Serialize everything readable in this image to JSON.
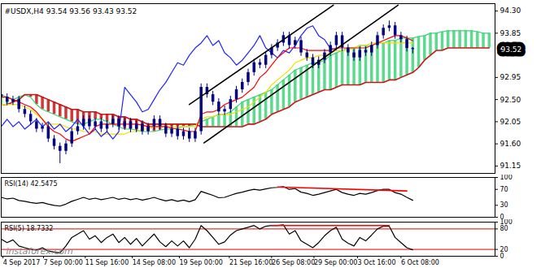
{
  "chart_data": {
    "type": "candlestick",
    "title": "#USDX,H4 93.54 93.56 93.43 93.52",
    "watermark": "instaforex.com",
    "xlim": [
      0,
      84
    ],
    "xticks": [
      {
        "value": 0.3,
        "label": "4 Sep 2017"
      },
      {
        "value": 7.2,
        "label": "7 Sep 00:00"
      },
      {
        "value": 14.3,
        "label": "11 Sep 16:00"
      },
      {
        "value": 22.3,
        "label": "14 Sep 08:00"
      },
      {
        "value": 30.3,
        "label": "19 Sep 00:00"
      },
      {
        "value": 38.8,
        "label": "21 Sep 16:00"
      },
      {
        "value": 46,
        "label": "26 Sep 08:00"
      },
      {
        "value": 53.2,
        "label": "29 Sep 00:00"
      },
      {
        "value": 60.6,
        "label": "3 Oct 16:00"
      },
      {
        "value": 68,
        "label": "6 Oct 08:00"
      }
    ],
    "ylim": [
      91.0,
      94.45
    ],
    "yticks": [
      {
        "value": 94.3,
        "label": "94.30"
      },
      93.85,
      92.95,
      {
        "value": 92.5,
        "label": "92.50"
      },
      92.05,
      {
        "value": 91.6,
        "label": "91.60"
      },
      91.15
    ],
    "current_price": {
      "value": 93.52,
      "label": "93.52"
    },
    "candles": {
      "color": "#000080",
      "open": [
        92.6,
        92.55,
        92.45,
        92.5,
        92.3,
        92.2,
        92.05,
        91.9,
        91.95,
        91.7,
        91.55,
        91.45,
        91.6,
        91.85,
        91.95,
        92.1,
        91.95,
        92.05,
        91.9,
        92.0,
        92.1,
        91.95,
        92.05,
        91.9,
        92.0,
        91.85,
        91.95,
        92.1,
        91.95,
        91.8,
        91.9,
        91.75,
        91.85,
        91.7,
        91.85,
        92.75,
        92.6,
        92.45,
        92.25,
        92.3,
        92.5,
        92.7,
        92.85,
        93.05,
        93.25,
        93.2,
        93.4,
        93.55,
        93.65,
        93.8,
        93.6,
        93.7,
        93.45,
        93.35,
        93.2,
        93.3,
        93.45,
        93.6,
        93.8,
        93.55,
        93.45,
        93.35,
        93.5,
        93.45,
        93.6,
        93.8,
        93.95,
        94.0,
        93.8,
        93.72,
        93.54
      ],
      "high": [
        92.67,
        92.62,
        92.57,
        92.57,
        92.37,
        92.27,
        92.12,
        92.02,
        92.02,
        91.77,
        91.62,
        91.67,
        91.92,
        92.02,
        92.17,
        92.17,
        92.12,
        92.12,
        92.07,
        92.17,
        92.17,
        92.12,
        92.12,
        92.07,
        92.07,
        92.02,
        92.17,
        92.17,
        92.02,
        91.97,
        91.97,
        91.92,
        91.92,
        91.92,
        92.82,
        92.82,
        92.67,
        92.52,
        92.37,
        92.57,
        92.77,
        92.92,
        93.12,
        93.32,
        93.32,
        93.47,
        93.62,
        93.72,
        93.87,
        93.87,
        93.77,
        93.77,
        93.52,
        93.42,
        93.37,
        93.52,
        93.67,
        93.87,
        93.87,
        93.62,
        93.52,
        93.57,
        93.57,
        93.67,
        93.87,
        94.02,
        94.1,
        94.07,
        93.87,
        93.79,
        93.56
      ],
      "low": [
        92.48,
        92.38,
        92.38,
        92.23,
        92.13,
        91.98,
        91.83,
        91.83,
        91.63,
        91.48,
        91.2,
        91.38,
        91.53,
        91.78,
        91.88,
        91.88,
        91.88,
        91.83,
        91.83,
        91.93,
        91.88,
        91.88,
        91.83,
        91.83,
        91.78,
        91.78,
        91.88,
        91.88,
        91.73,
        91.73,
        91.68,
        91.68,
        91.63,
        91.63,
        91.78,
        92.53,
        92.38,
        92.18,
        92.18,
        92.23,
        92.43,
        92.63,
        92.78,
        92.98,
        93.13,
        93.13,
        93.33,
        93.48,
        93.58,
        93.53,
        93.53,
        93.38,
        93.28,
        93.13,
        93.13,
        93.23,
        93.38,
        93.53,
        93.48,
        93.38,
        93.28,
        93.28,
        93.38,
        93.38,
        93.53,
        93.73,
        93.88,
        93.73,
        93.65,
        93.47,
        93.43
      ],
      "close": [
        92.55,
        92.45,
        92.5,
        92.3,
        92.2,
        92.05,
        91.9,
        91.95,
        91.7,
        91.55,
        91.45,
        91.6,
        91.85,
        91.95,
        92.1,
        91.95,
        92.05,
        91.9,
        92.0,
        92.1,
        91.95,
        92.05,
        91.9,
        92.0,
        91.85,
        91.95,
        92.1,
        91.95,
        91.8,
        91.9,
        91.75,
        91.85,
        91.7,
        91.85,
        92.75,
        92.6,
        92.45,
        92.25,
        92.3,
        92.5,
        92.7,
        92.85,
        93.05,
        93.25,
        93.2,
        93.4,
        93.55,
        93.65,
        93.8,
        93.6,
        93.7,
        93.45,
        93.35,
        93.2,
        93.3,
        93.45,
        93.6,
        93.8,
        93.55,
        93.45,
        93.35,
        93.5,
        93.45,
        93.6,
        93.8,
        93.95,
        94.0,
        93.8,
        93.72,
        93.54,
        93.52
      ]
    },
    "cloud": {
      "colors": [
        "#3fd47a",
        "#c81414"
      ],
      "span_a": [
        92.6,
        92.55,
        92.5,
        92.55,
        92.6,
        92.55,
        92.4,
        92.3,
        92.25,
        92.2,
        92.15,
        92.1,
        92.05,
        92.0,
        92.0,
        92.05,
        92.1,
        92.1,
        92.05,
        92.0,
        91.95,
        91.9,
        91.9,
        91.88,
        91.85,
        91.85,
        91.85,
        91.88,
        91.9,
        91.9,
        91.92,
        91.95,
        91.95,
        92.0,
        92.05,
        92.1,
        92.15,
        92.2,
        92.2,
        92.25,
        92.35,
        92.45,
        92.5,
        92.55,
        92.6,
        92.65,
        92.7,
        92.8,
        92.9,
        93.0,
        93.1,
        93.15,
        93.2,
        93.25,
        93.25,
        93.3,
        93.4,
        93.45,
        93.5,
        93.55,
        93.55,
        93.6,
        93.6,
        93.6,
        93.65,
        93.65,
        93.7,
        93.7,
        93.75,
        93.75,
        93.75,
        93.78,
        93.8,
        93.85,
        93.85,
        93.88,
        93.9,
        93.9,
        93.9,
        93.9,
        93.9,
        93.88,
        93.85,
        93.85
      ],
      "span_b": [
        92.4,
        92.4,
        92.45,
        92.5,
        92.6,
        92.6,
        92.6,
        92.55,
        92.5,
        92.45,
        92.4,
        92.35,
        92.3,
        92.3,
        92.25,
        92.25,
        92.25,
        92.2,
        92.2,
        92.2,
        92.15,
        92.15,
        92.1,
        92.1,
        92.05,
        92.0,
        92.0,
        92.0,
        92.0,
        92.0,
        92.0,
        92.0,
        92.0,
        92.0,
        91.95,
        91.95,
        91.95,
        91.95,
        91.95,
        91.95,
        91.95,
        91.95,
        92.0,
        92.0,
        92.05,
        92.1,
        92.2,
        92.25,
        92.3,
        92.35,
        92.45,
        92.5,
        92.55,
        92.6,
        92.65,
        92.7,
        92.7,
        92.75,
        92.8,
        92.8,
        92.8,
        92.8,
        92.85,
        92.85,
        92.85,
        92.85,
        92.9,
        92.9,
        92.95,
        93.0,
        93.05,
        93.15,
        93.3,
        93.4,
        93.5,
        93.5,
        93.55,
        93.55,
        93.55,
        93.55,
        93.55,
        93.55,
        93.55,
        93.55
      ]
    },
    "series": [
      {
        "color": "#f0e000",
        "line_style": "solid",
        "values": [
          92.4,
          92.4,
          92.4,
          92.4,
          92.35,
          92.3,
          92.2,
          92.1,
          92.0,
          92.0,
          92.0,
          91.95,
          91.9,
          91.9,
          91.85,
          91.85,
          91.85,
          91.8,
          91.8,
          91.8,
          91.8,
          91.8,
          91.85,
          91.85,
          91.9,
          91.9,
          91.95,
          91.95,
          91.95,
          91.95,
          91.95,
          91.95,
          91.95,
          91.95,
          92.1,
          92.15,
          92.15,
          92.2,
          92.2,
          92.2,
          92.25,
          92.3,
          92.35,
          92.45,
          92.55,
          92.65,
          92.8,
          92.9,
          93.0,
          93.1,
          93.25,
          93.3,
          93.35,
          93.35,
          93.4,
          93.4,
          93.45,
          93.5,
          93.5,
          93.5,
          93.55,
          93.6,
          93.6,
          93.65,
          93.65,
          93.65,
          93.65,
          93.65,
          93.65,
          93.65,
          93.65
        ]
      },
      {
        "color": "#2020ff",
        "line_style": "solid",
        "values": [
          91.95,
          92.1,
          91.95,
          92.05,
          91.9,
          92.0,
          92.1,
          91.95,
          92.05,
          91.9,
          92.0,
          91.85,
          91.95,
          92.1,
          91.95,
          91.8,
          91.9,
          91.75,
          91.85,
          91.7,
          91.85,
          92.75,
          92.6,
          92.45,
          92.25,
          92.3,
          92.5,
          92.7,
          92.85,
          93.05,
          93.25,
          93.2,
          93.4,
          93.55,
          93.65,
          93.8,
          93.6,
          93.7,
          93.45,
          93.35,
          93.2,
          93.3,
          93.45,
          93.6,
          93.8,
          93.55,
          93.45,
          93.35,
          93.5,
          93.45,
          93.6,
          93.8,
          93.95,
          94.0,
          93.8,
          93.72,
          93.54,
          93.52,
          null,
          null,
          null,
          null,
          null,
          null,
          null,
          null,
          null,
          null,
          null,
          null,
          null
        ]
      },
      {
        "color": "#ff0000",
        "line_style": "solid",
        "values": [
          92.55,
          92.55,
          92.5,
          92.45,
          92.4,
          92.35,
          92.25,
          92.1,
          91.95,
          91.85,
          91.8,
          91.7,
          91.65,
          91.7,
          91.75,
          91.8,
          91.95,
          92.0,
          92.0,
          92.0,
          92.0,
          92.0,
          92.0,
          92.0,
          91.98,
          91.95,
          91.95,
          91.95,
          91.95,
          91.92,
          91.9,
          91.88,
          91.85,
          91.85,
          92.2,
          92.25,
          92.25,
          92.3,
          92.4,
          92.45,
          92.5,
          92.55,
          92.65,
          92.75,
          92.95,
          93.05,
          93.2,
          93.35,
          93.45,
          93.55,
          93.55,
          93.55,
          93.5,
          93.5,
          93.5,
          93.5,
          93.5,
          93.55,
          93.55,
          93.55,
          93.55,
          93.55,
          93.55,
          93.6,
          93.65,
          93.7,
          93.75,
          93.8,
          93.8,
          93.75,
          93.7
        ]
      }
    ],
    "trendlines": [
      {
        "color": "#000000",
        "x": [
          34.5,
          67.5
        ],
        "y": [
          91.62,
          94.42
        ]
      },
      {
        "color": "#000000",
        "x": [
          32,
          56.5
        ],
        "y": [
          92.4,
          94.42
        ]
      }
    ],
    "panels": [
      {
        "type": "line",
        "title": "RSI(14) 42.5475",
        "ylim": [
          0,
          100
        ],
        "yticks": [
          100,
          70,
          30,
          0
        ],
        "color": "#000000",
        "values": [
          50,
          46,
          48,
          42,
          40,
          37,
          35,
          37,
          33,
          30,
          28,
          33,
          40,
          45,
          50,
          45,
          48,
          44,
          47,
          50,
          45,
          48,
          44,
          47,
          43,
          46,
          50,
          45,
          41,
          44,
          40,
          43,
          39,
          44,
          65,
          60,
          55,
          49,
          50,
          55,
          60,
          63,
          67,
          70,
          68,
          71,
          74,
          75,
          77,
          70,
          72,
          63,
          60,
          55,
          58,
          62,
          66,
          70,
          62,
          58,
          55,
          60,
          58,
          62,
          67,
          70,
          70,
          62,
          58,
          50,
          42.5475
        ],
        "trendlines": [
          {
            "color": "#ff0000",
            "x": [
              47,
              69
            ],
            "y": [
              76,
              66
            ]
          }
        ]
      },
      {
        "type": "line",
        "title": "RSI(5) 18.7332",
        "ylim": [
          0,
          100
        ],
        "yticks": [
          100,
          80,
          20,
          0
        ],
        "color": "#000000",
        "levels": [
          80,
          20
        ],
        "level_color": "#e00000",
        "values": [
          50,
          40,
          48,
          30,
          25,
          20,
          18,
          25,
          15,
          12,
          10,
          30,
          55,
          65,
          75,
          50,
          60,
          40,
          55,
          65,
          40,
          55,
          35,
          52,
          30,
          48,
          65,
          42,
          28,
          45,
          30,
          45,
          25,
          50,
          90,
          75,
          55,
          35,
          42,
          62,
          75,
          80,
          85,
          90,
          80,
          88,
          90,
          90,
          92,
          65,
          75,
          45,
          35,
          25,
          40,
          60,
          75,
          85,
          50,
          38,
          30,
          55,
          45,
          62,
          80,
          88,
          88,
          55,
          40,
          25,
          18.7332
        ],
        "trendlines": [
          {
            "color": "#ff0000",
            "x": [
              46,
              66
            ],
            "y": [
              90,
              90
            ]
          }
        ]
      }
    ]
  }
}
